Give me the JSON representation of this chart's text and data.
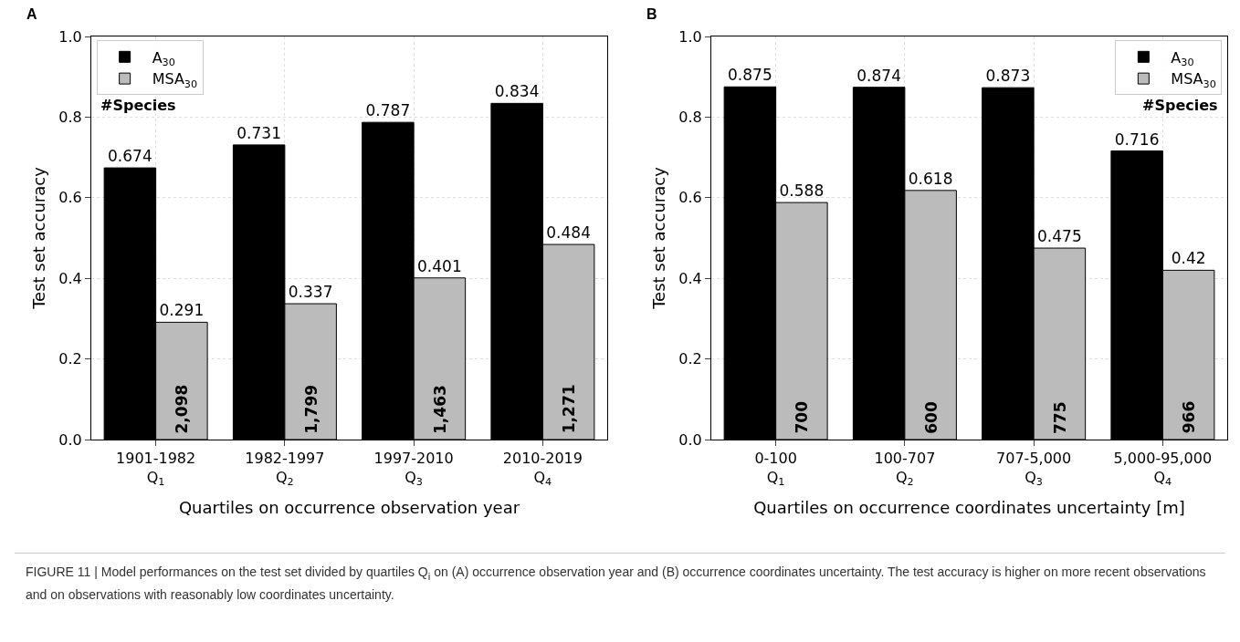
{
  "chart_data": [
    {
      "type": "bar",
      "title": "A",
      "xlabel": "Quartiles on occurrence observation year",
      "ylabel": "Test set accuracy",
      "legend_title": "#Species",
      "categories": [
        "1901-1982\nQ$_{1}$",
        "1982-1997\nQ$_{2}$",
        "1997-2010\nQ$_{3}$",
        "2010-2019\nQ$_{4}$"
      ],
      "series": [
        {
          "name": "A$_{30}$",
          "color": "#000000",
          "values": [
            0.674,
            0.731,
            0.787,
            0.834
          ]
        },
        {
          "name": "MSA$_{30}$",
          "color": "#bbbbbb",
          "values": [
            0.291,
            0.337,
            0.401,
            0.484
          ]
        }
      ],
      "data_labels": true,
      "ylim": [
        0,
        1
      ],
      "yticks": [
        {
          "value": 0,
          "label": "0.0"
        },
        {
          "value": 0.2,
          "label": "0.2"
        },
        {
          "value": 0.4,
          "label": "0.4"
        },
        {
          "value": 0.6,
          "label": "0.6"
        },
        {
          "value": 0.8,
          "label": "0.8"
        },
        {
          "value": 1,
          "label": "1.0"
        }
      ],
      "grid": true,
      "legend": "top left",
      "annotations": [
        {
          "text": "2,098",
          "x": "1901-1982\nQ$_{1}$"
        },
        {
          "text": "1,799",
          "x": "1982-1997\nQ$_{2}$"
        },
        {
          "text": "1,463",
          "x": "1997-2010\nQ$_{3}$"
        },
        {
          "text": "1,271",
          "x": "2010-2019\nQ$_{4}$"
        },
        "FIGURE 11 | Model performances on the test set divided by quartiles Q$_{i}$ on (A) occurrence observation year and (B) occurrence coordinates uncertainty. The test accuracy is higher on more recent observations and on observations with reasonably low coordinates uncertainty."
      ]
    },
    {
      "type": "bar",
      "title": "B",
      "xlabel": "Quartiles on occurrence coordinates uncertainty [m]",
      "ylabel": "Test set accuracy",
      "legend_title": "#Species",
      "categories": [
        "0-100\nQ$_{1}$",
        "100-707\nQ$_{2}$",
        "707-5,000\nQ$_{3}$",
        "5,000-95,000\nQ$_{4}$"
      ],
      "series": [
        {
          "name": "A$_{30}$",
          "color": "#000000",
          "values": [
            0.875,
            0.874,
            0.873,
            0.716
          ]
        },
        {
          "name": "MSA$_{30}$",
          "color": "#bbbbbb",
          "values": [
            0.588,
            0.618,
            0.475,
            0.42
          ]
        }
      ],
      "data_labels": true,
      "ylim": [
        0,
        1
      ],
      "yticks": [
        {
          "value": 0,
          "label": "0.0"
        },
        {
          "value": 0.2,
          "label": "0.2"
        },
        {
          "value": 0.4,
          "label": "0.4"
        },
        {
          "value": 0.6,
          "label": "0.6"
        },
        {
          "value": 0.8,
          "label": "0.8"
        },
        {
          "value": 1,
          "label": "1.0"
        }
      ],
      "grid": true,
      "legend": "top right",
      "annotations": [
        {
          "text": "700",
          "x": "0-100\nQ$_{1}$"
        },
        {
          "text": "600",
          "x": "100-707\nQ$_{2}$"
        },
        {
          "text": "775",
          "x": "707-5,000\nQ$_{3}$"
        },
        {
          "text": "966",
          "x": "5,000-95,000\nQ$_{4}$"
        }
      ]
    }
  ]
}
